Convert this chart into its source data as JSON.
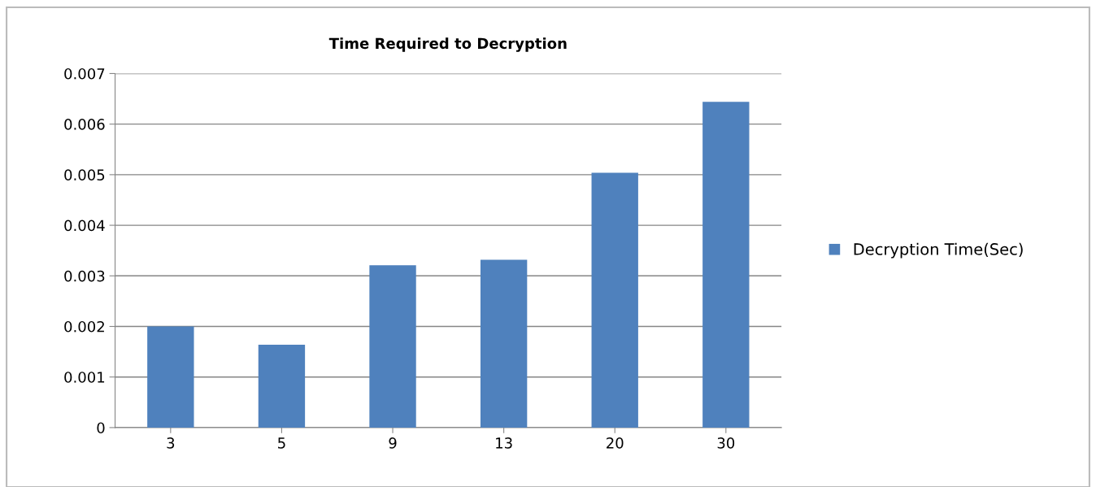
{
  "chart_data": {
    "type": "bar",
    "title": "Time Required to Decryption",
    "categories": [
      "3",
      "5",
      "9",
      "13",
      "20",
      "30"
    ],
    "series": [
      {
        "name": "Decryption Time(Sec)",
        "color": "#4f81bd",
        "values": [
          0.002,
          0.00164,
          0.00321,
          0.00332,
          0.00504,
          0.00644
        ]
      }
    ],
    "ylim": [
      0,
      0.007
    ],
    "yticks": [
      0,
      0.001,
      0.002,
      0.003,
      0.004,
      0.005,
      0.006,
      0.007
    ],
    "grid": "y",
    "legend": "right"
  }
}
